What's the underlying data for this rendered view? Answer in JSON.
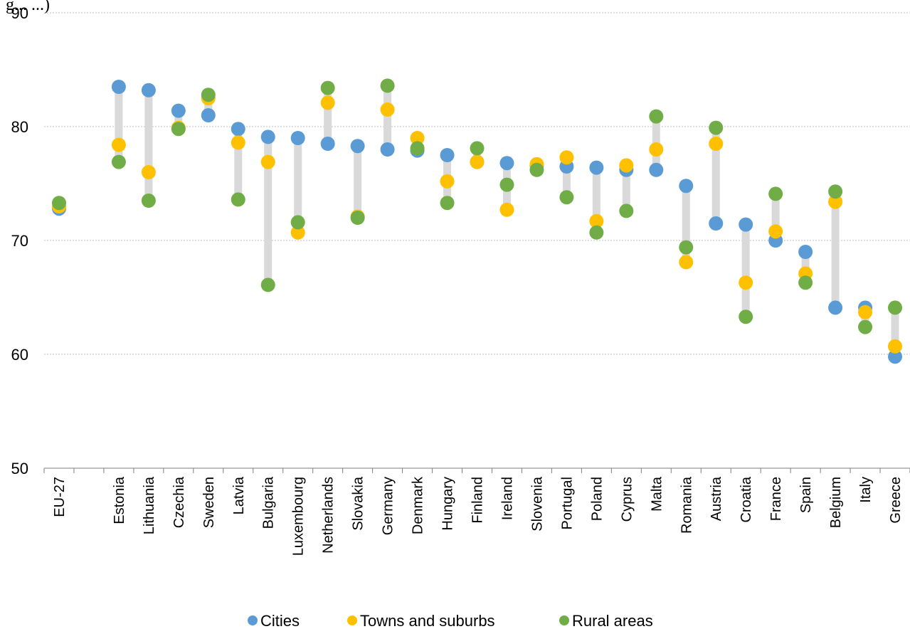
{
  "top_fragment": "g...   ...)",
  "chart_data": {
    "type": "scatter",
    "title": "",
    "xlabel": "",
    "ylabel": "",
    "ylim": [
      50,
      90
    ],
    "yticks": [
      50,
      60,
      70,
      80,
      90
    ],
    "grid": true,
    "legend_position": "bottom",
    "categories": [
      "EU-27",
      "",
      "Estonia",
      "Lithuania",
      "Czechia",
      "Sweden",
      "Latvia",
      "Bulgaria",
      "Luxembourg",
      "Netherlands",
      "Slovakia",
      "Germany",
      "Denmark",
      "Hungary",
      "Finland",
      "Ireland",
      "Slovenia",
      "Portugal",
      "Poland",
      "Cyprus",
      "Malta",
      "Romania",
      "Austria",
      "Croatia",
      "France",
      "Spain",
      "Belgium",
      "Italy",
      "Greece"
    ],
    "series": [
      {
        "name": "Cities",
        "color": "#5B9BD5",
        "values": [
          72.8,
          null,
          83.5,
          83.2,
          81.4,
          81.0,
          79.8,
          79.1,
          79.0,
          78.5,
          78.3,
          78.0,
          77.9,
          77.5,
          76.9,
          76.8,
          76.6,
          76.5,
          76.4,
          76.2,
          76.2,
          74.8,
          71.5,
          71.4,
          70.0,
          69.0,
          64.1,
          64.1,
          59.8
        ]
      },
      {
        "name": "Towns and suburbs",
        "color": "#FFC000",
        "values": [
          73.0,
          null,
          78.4,
          76.0,
          79.9,
          82.5,
          78.6,
          76.9,
          70.7,
          82.1,
          72.1,
          81.5,
          79.0,
          75.2,
          76.9,
          72.7,
          76.7,
          77.3,
          71.7,
          76.6,
          78.0,
          68.1,
          78.5,
          66.3,
          70.8,
          67.1,
          73.4,
          63.7,
          60.7
        ]
      },
      {
        "name": "Rural areas",
        "color": "#70AD47",
        "values": [
          73.3,
          null,
          76.9,
          73.5,
          79.8,
          82.8,
          73.6,
          66.1,
          71.6,
          83.4,
          72.0,
          83.6,
          78.1,
          73.3,
          78.1,
          74.9,
          76.2,
          73.8,
          70.7,
          72.6,
          80.9,
          69.4,
          79.9,
          63.3,
          74.1,
          66.3,
          74.3,
          62.4,
          64.1
        ]
      }
    ]
  }
}
